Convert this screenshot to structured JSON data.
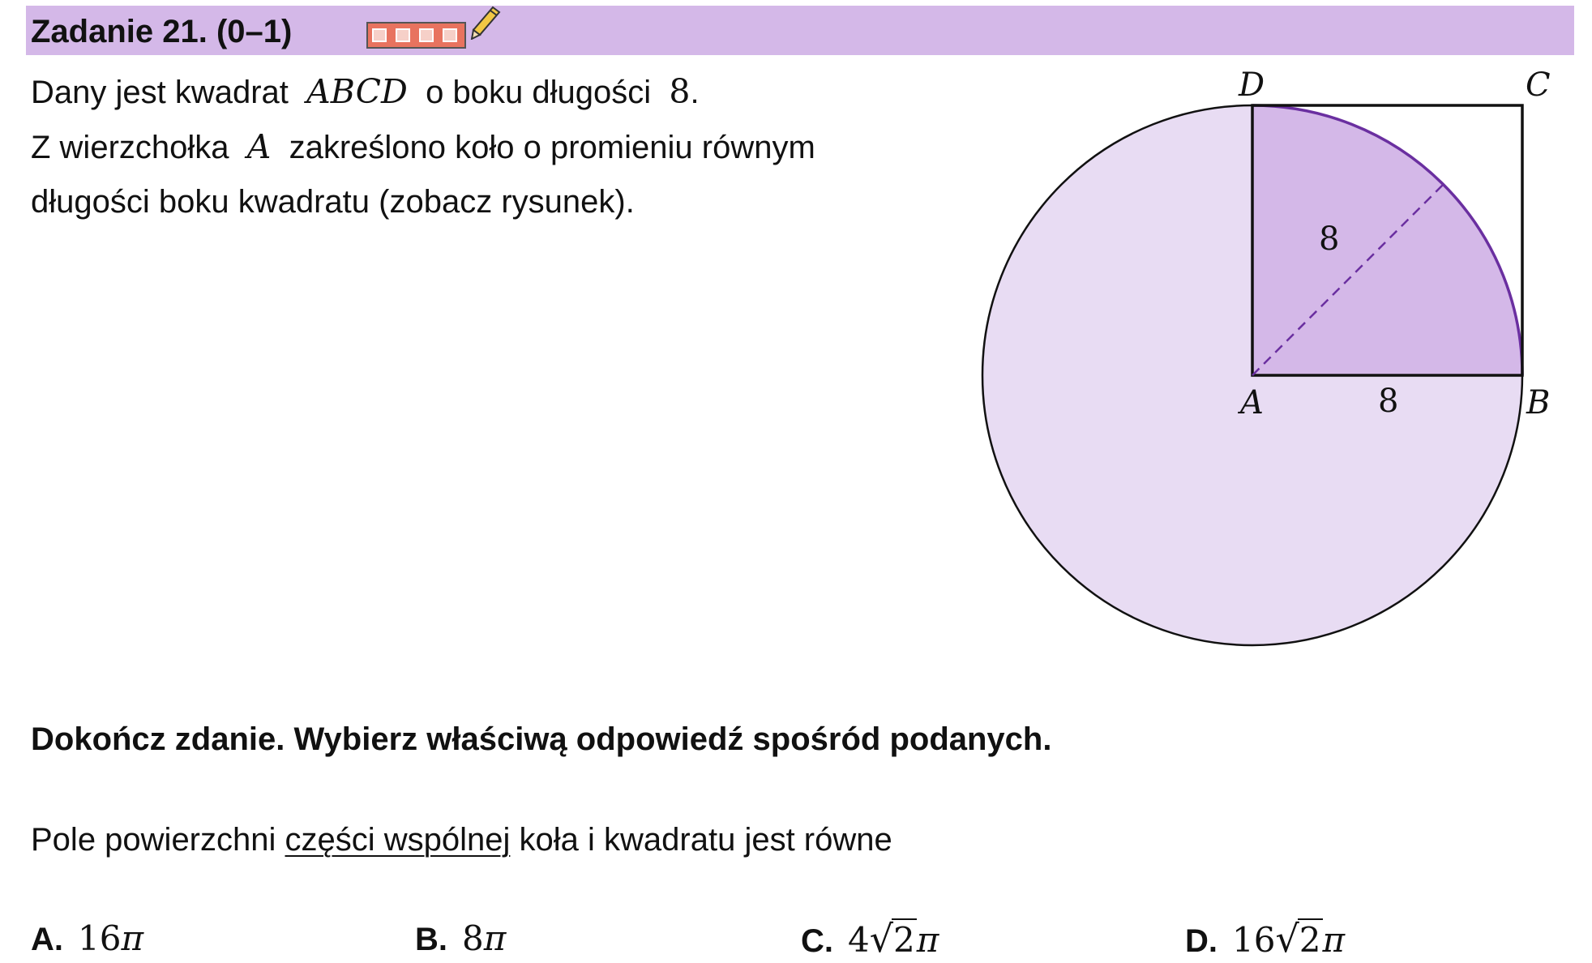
{
  "header": {
    "title": "Zadanie 21. (0–1)",
    "background": "#d4b8e8"
  },
  "intro": {
    "l1_a": "Dany jest kwadrat",
    "l1_math": "ABCD",
    "l1_b": "o boku długości",
    "l1_num": "8",
    "l1_end": ".",
    "l2_a": "Z wierzchołka",
    "l2_math": "A",
    "l2_b": "zakreślono koło o promieniu równym",
    "l3": "długości boku kwadratu (zobacz rysunek)."
  },
  "figure": {
    "vertex_a": "A",
    "vertex_b": "B",
    "vertex_c": "C",
    "vertex_d": "D",
    "radius_label": "8",
    "side_label": "8",
    "circle_fill": "#e8dcf3",
    "sector_fill": "#d4b8e8",
    "arc_color": "#6a2fa0"
  },
  "instruction": "Dokończ zdanie. Wybierz właściwą odpowiedź spośród podanych.",
  "question": {
    "a": "Pole powierzchni",
    "underlined": "części wspólnej",
    "b": "koła i kwadratu jest równe"
  },
  "answers": {
    "a": {
      "letter": "A.",
      "coef": "16",
      "pi": "π"
    },
    "b": {
      "letter": "B.",
      "coef": "8",
      "pi": "π"
    },
    "c": {
      "letter": "C.",
      "coef": "4",
      "radicand": "2",
      "pi": "π"
    },
    "d": {
      "letter": "D.",
      "coef": "16",
      "radicand": "2",
      "pi": "π"
    }
  }
}
